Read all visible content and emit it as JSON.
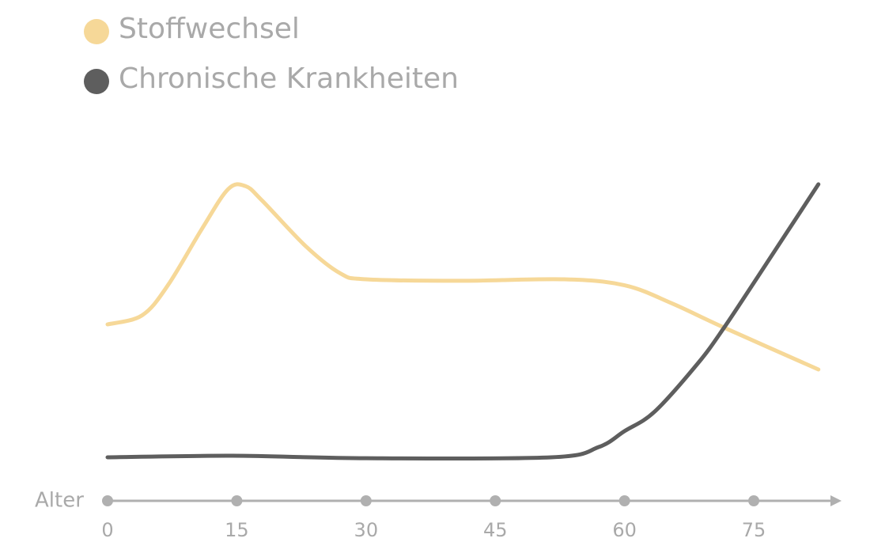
{
  "chart_data": {
    "type": "line",
    "x_label": "Alter",
    "xlim": [
      0,
      85
    ],
    "xticks": [
      0,
      15,
      30,
      45,
      60,
      75
    ],
    "ylim": [
      0,
      100
    ],
    "series": [
      {
        "name": "Stoffwechsel",
        "color": "#f6d898",
        "x": [
          0,
          4,
          7,
          11,
          14,
          16,
          18,
          23,
          27,
          30,
          41,
          53,
          60,
          65.5,
          71.5,
          82.5
        ],
        "values": [
          50,
          53,
          63,
          82,
          95,
          96,
          91,
          76,
          67,
          65,
          64.5,
          65,
          63,
          57,
          49,
          35
        ]
      },
      {
        "name": "Chronische Krankheiten",
        "color": "#5e5e5e",
        "x": [
          0,
          14.5,
          30,
          51.5,
          57,
          60,
          63.5,
          68.5,
          71.5,
          75.5,
          82.5
        ],
        "values": [
          5.8,
          6.3,
          5.5,
          5.8,
          9.2,
          14.5,
          21,
          37,
          48.7,
          66,
          96.6
        ]
      }
    ]
  }
}
